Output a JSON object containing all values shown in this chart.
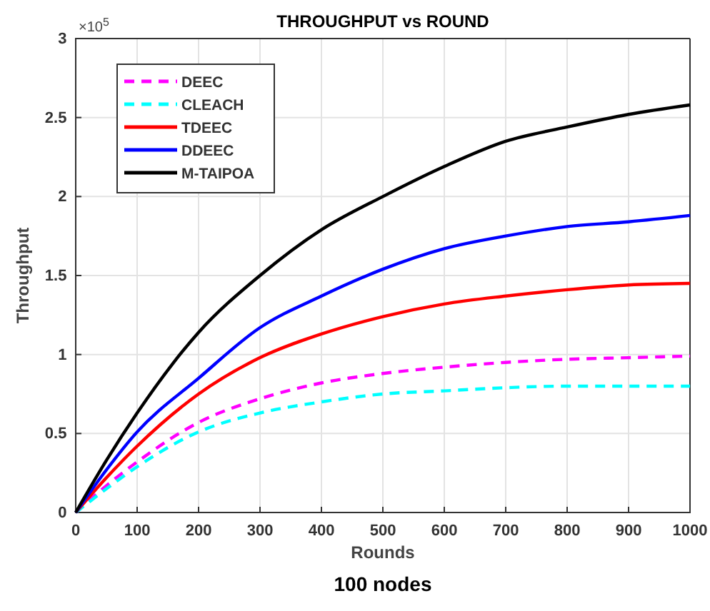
{
  "chart_data": {
    "type": "line",
    "title": "THROUGHPUT vs ROUND",
    "xlabel": "Rounds",
    "ylabel": "Throughput",
    "annotations": [
      "×10$^{5}$",
      "100 nodes"
    ],
    "x": [
      0,
      50,
      100,
      200,
      300,
      400,
      500,
      600,
      700,
      800,
      900,
      1000
    ],
    "series": [
      {
        "name": "DEEC",
        "color": "#ff00ff",
        "line_style": "dashed",
        "values": [
          0,
          0.17,
          0.32,
          0.57,
          0.72,
          0.82,
          0.88,
          0.92,
          0.95,
          0.97,
          0.98,
          0.99
        ]
      },
      {
        "name": "CLEACH",
        "color": "#00ffff",
        "line_style": "dashed",
        "values": [
          0,
          0.15,
          0.29,
          0.51,
          0.63,
          0.7,
          0.75,
          0.77,
          0.79,
          0.8,
          0.8,
          0.8
        ]
      },
      {
        "name": "TDEEC",
        "color": "#ff0000",
        "line_style": "solid",
        "values": [
          0,
          0.22,
          0.42,
          0.75,
          0.98,
          1.13,
          1.24,
          1.32,
          1.37,
          1.41,
          1.44,
          1.45
        ]
      },
      {
        "name": "DDEEC",
        "color": "#0000ff",
        "line_style": "solid",
        "values": [
          0,
          0.27,
          0.51,
          0.85,
          1.17,
          1.37,
          1.54,
          1.67,
          1.75,
          1.81,
          1.84,
          1.88
        ]
      },
      {
        "name": "M-TAIPOA",
        "color": "#000000",
        "line_style": "solid",
        "values": [
          0,
          0.33,
          0.63,
          1.14,
          1.5,
          1.79,
          2.0,
          2.19,
          2.35,
          2.44,
          2.52,
          2.58
        ]
      }
    ],
    "xlim": [
      0,
      1000
    ],
    "xticks": [
      0,
      100,
      200,
      300,
      400,
      500,
      600,
      700,
      800,
      900,
      1000
    ],
    "ylim": [
      0,
      3
    ],
    "yticks": [
      0,
      0.5,
      1,
      1.5,
      2,
      2.5,
      3
    ],
    "grid": true,
    "legend": "top left",
    "marker": "none"
  }
}
